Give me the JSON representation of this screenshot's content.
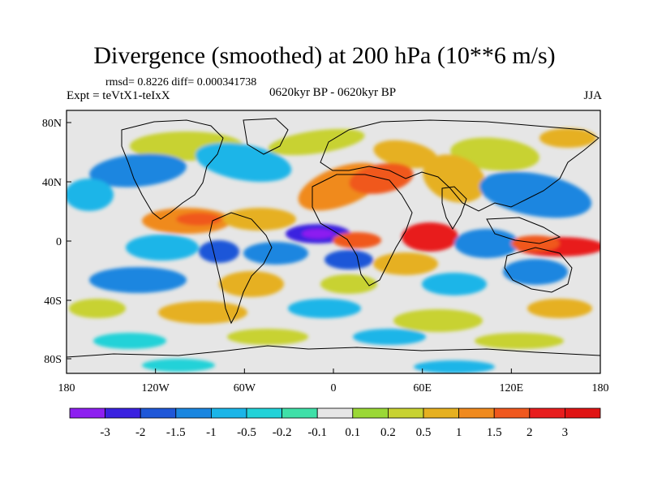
{
  "title": "Divergence (smoothed) at 200 hPa (10**6 m/s)",
  "stats": "rmsd= 0.8226 diff= 0.000341738",
  "experiment": "Expt = teVtX1-teIxX",
  "period": "0620kyr BP - 0620kyr BP",
  "season": "JJA",
  "axes": {
    "x_ticks": [
      "180",
      "120W",
      "60W",
      "0",
      "60E",
      "120E",
      "180"
    ],
    "y_ticks": [
      "80N",
      "40N",
      "0",
      "40S",
      "80S"
    ]
  },
  "colorbar": {
    "labels": [
      "-3",
      "-2",
      "-1.5",
      "-1",
      "-0.5",
      "-0.2",
      "-0.1",
      "0.1",
      "0.2",
      "0.5",
      "1",
      "1.5",
      "2",
      "3"
    ],
    "colors": [
      "#8d1ff0",
      "#3a21e0",
      "#1f57d8",
      "#1a86e0",
      "#1bb5e8",
      "#22d2d8",
      "#3fe0a8",
      "#e6e6e6",
      "#9ad836",
      "#c8d232",
      "#e6b020",
      "#f08a1e",
      "#f0581e",
      "#e81e1e",
      "#e01414"
    ]
  },
  "neutral_color": "#e6e6e6"
}
